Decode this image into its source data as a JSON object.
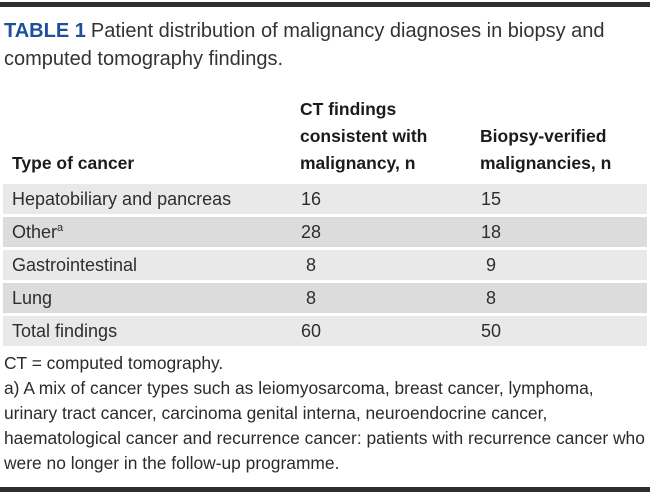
{
  "title": {
    "label": "TABLE 1",
    "text": "Patient distribution of malignancy diagnoses in biopsy and computed tomography findings."
  },
  "table": {
    "headers": {
      "cancer_type": "Type of cancer",
      "ct": "CT findings consistent with malignancy, n",
      "biopsy": "Biopsy-verified malignancies, n"
    },
    "rows": [
      {
        "type": "Hepatobiliary and pancreas",
        "sup": "",
        "ct": "16",
        "biopsy": "15"
      },
      {
        "type": "Other",
        "sup": "a",
        "ct": "28",
        "biopsy": "18"
      },
      {
        "type": "Gastrointestinal",
        "sup": "",
        "ct": "8",
        "biopsy": "9"
      },
      {
        "type": "Lung",
        "sup": "",
        "ct": "8",
        "biopsy": "8"
      },
      {
        "type": "Total findings",
        "sup": "",
        "ct": "60",
        "biopsy": "50"
      }
    ]
  },
  "footnotes": {
    "abbreviation": "CT = computed tomography.",
    "note_a": "a) A mix of cancer types such as leiomyosarcoma, breast cancer, lymphoma, urinary tract cancer, carcinoma genital interna, neuroendocrine cancer, haematological cancer and recurrence cancer: patients with recurrence cancer who were no longer in the follow-up programme."
  },
  "colors": {
    "accent_blue": "#1e4f9c",
    "rule_dark": "#2e2e2e",
    "row_shade_dark": "#dcdcdc",
    "row_shade_light": "#e9e9e9",
    "text_primary": "#2e2e2e"
  }
}
